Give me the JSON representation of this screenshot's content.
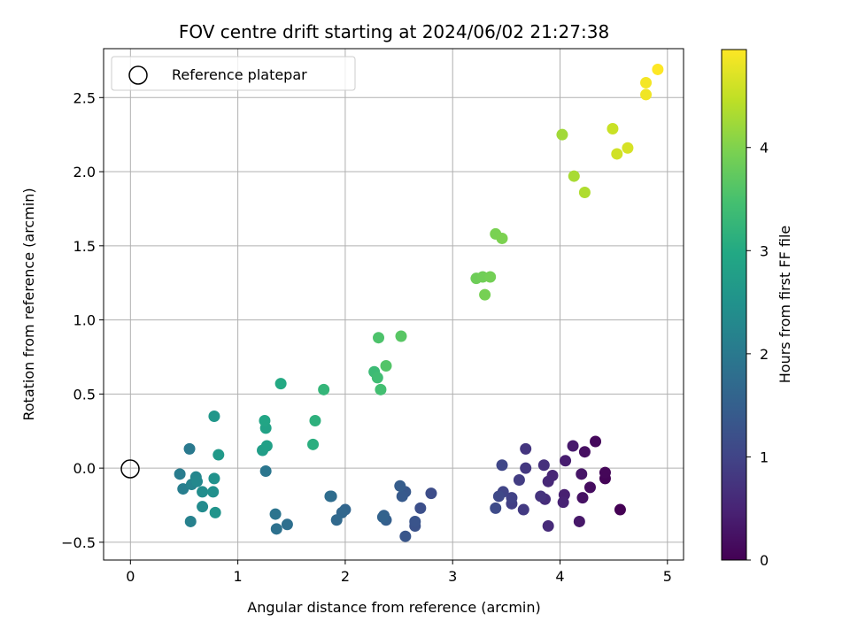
{
  "chart_data": {
    "type": "scatter",
    "title": "FOV centre drift starting at 2024/06/02 21:27:38",
    "xlabel": "Angular distance from reference (arcmin)",
    "ylabel": "Rotation from reference (arcmin)",
    "xlim": [
      -0.25,
      5.15
    ],
    "ylim": [
      -0.62,
      2.83
    ],
    "xticks": [
      0,
      1,
      2,
      3,
      4,
      5
    ],
    "xtick_labels": [
      "0",
      "1",
      "2",
      "3",
      "4",
      "5"
    ],
    "yticks": [
      -0.5,
      0.0,
      0.5,
      1.0,
      1.5,
      2.0,
      2.5
    ],
    "ytick_labels": [
      "−0.5",
      "0.0",
      "0.5",
      "1.0",
      "1.5",
      "2.0",
      "2.5"
    ],
    "grid": true,
    "legend": {
      "placement": "upper-left",
      "entries": [
        "Reference platepar"
      ]
    },
    "colorbar": {
      "label": "Hours from first FF file",
      "colormap": "viridis",
      "range": [
        0,
        4.95
      ],
      "ticks": [
        0,
        1,
        2,
        3,
        4
      ],
      "tick_labels": [
        "0",
        "1",
        "2",
        "3",
        "4"
      ]
    },
    "reference_point": {
      "x": 0,
      "y": 0,
      "marker": "open-circle",
      "label": "Reference platepar"
    },
    "points": [
      {
        "x": 4.56,
        "y": -0.28,
        "c": 0.0
      },
      {
        "x": 4.42,
        "y": -0.07,
        "c": 0.04
      },
      {
        "x": 4.42,
        "y": -0.03,
        "c": 0.08
      },
      {
        "x": 4.33,
        "y": 0.18,
        "c": 0.12
      },
      {
        "x": 4.28,
        "y": -0.13,
        "c": 0.16
      },
      {
        "x": 4.23,
        "y": 0.11,
        "c": 0.2
      },
      {
        "x": 4.21,
        "y": -0.2,
        "c": 0.24
      },
      {
        "x": 4.2,
        "y": -0.04,
        "c": 0.28
      },
      {
        "x": 4.18,
        "y": -0.36,
        "c": 0.32
      },
      {
        "x": 4.12,
        "y": 0.15,
        "c": 0.36
      },
      {
        "x": 4.05,
        "y": 0.05,
        "c": 0.4
      },
      {
        "x": 4.04,
        "y": -0.18,
        "c": 0.44
      },
      {
        "x": 4.03,
        "y": -0.23,
        "c": 0.48
      },
      {
        "x": 3.93,
        "y": -0.05,
        "c": 0.52
      },
      {
        "x": 3.89,
        "y": -0.09,
        "c": 0.56
      },
      {
        "x": 3.89,
        "y": -0.39,
        "c": 0.6
      },
      {
        "x": 3.86,
        "y": -0.21,
        "c": 0.64
      },
      {
        "x": 3.85,
        "y": 0.02,
        "c": 0.68
      },
      {
        "x": 3.82,
        "y": -0.19,
        "c": 0.72
      },
      {
        "x": 3.68,
        "y": 0.13,
        "c": 0.76
      },
      {
        "x": 3.68,
        "y": 0.0,
        "c": 0.8
      },
      {
        "x": 3.66,
        "y": -0.28,
        "c": 0.84
      },
      {
        "x": 3.62,
        "y": -0.08,
        "c": 0.88
      },
      {
        "x": 3.55,
        "y": -0.24,
        "c": 0.92
      },
      {
        "x": 3.55,
        "y": -0.2,
        "c": 0.96
      },
      {
        "x": 3.47,
        "y": -0.16,
        "c": 1.0
      },
      {
        "x": 3.46,
        "y": 0.02,
        "c": 1.04
      },
      {
        "x": 3.43,
        "y": -0.19,
        "c": 1.08
      },
      {
        "x": 3.4,
        "y": -0.27,
        "c": 1.12
      },
      {
        "x": 2.8,
        "y": -0.17,
        "c": 1.16
      },
      {
        "x": 2.7,
        "y": -0.27,
        "c": 1.2
      },
      {
        "x": 2.65,
        "y": -0.39,
        "c": 1.24
      },
      {
        "x": 2.65,
        "y": -0.36,
        "c": 1.28
      },
      {
        "x": 2.56,
        "y": -0.46,
        "c": 1.32
      },
      {
        "x": 2.56,
        "y": -0.16,
        "c": 1.36
      },
      {
        "x": 2.53,
        "y": -0.19,
        "c": 1.4
      },
      {
        "x": 2.51,
        "y": -0.12,
        "c": 1.44
      },
      {
        "x": 2.38,
        "y": -0.35,
        "c": 1.48
      },
      {
        "x": 2.36,
        "y": -0.32,
        "c": 1.52
      },
      {
        "x": 2.35,
        "y": -0.33,
        "c": 1.56
      },
      {
        "x": 2.0,
        "y": -0.28,
        "c": 1.6
      },
      {
        "x": 1.97,
        "y": -0.3,
        "c": 1.64
      },
      {
        "x": 1.92,
        "y": -0.35,
        "c": 1.68
      },
      {
        "x": 1.87,
        "y": -0.19,
        "c": 1.72
      },
      {
        "x": 1.86,
        "y": -0.19,
        "c": 1.76
      },
      {
        "x": 1.46,
        "y": -0.38,
        "c": 1.8
      },
      {
        "x": 1.36,
        "y": -0.41,
        "c": 1.85
      },
      {
        "x": 1.35,
        "y": -0.31,
        "c": 1.9
      },
      {
        "x": 1.26,
        "y": -0.02,
        "c": 1.95
      },
      {
        "x": 0.55,
        "y": 0.13,
        "c": 2.0
      },
      {
        "x": 0.46,
        "y": -0.04,
        "c": 2.05
      },
      {
        "x": 0.49,
        "y": -0.14,
        "c": 2.1
      },
      {
        "x": 0.56,
        "y": -0.36,
        "c": 2.15
      },
      {
        "x": 0.57,
        "y": -0.11,
        "c": 2.2
      },
      {
        "x": 0.61,
        "y": -0.06,
        "c": 2.25
      },
      {
        "x": 0.62,
        "y": -0.09,
        "c": 2.3
      },
      {
        "x": 0.67,
        "y": -0.26,
        "c": 2.35
      },
      {
        "x": 0.67,
        "y": -0.16,
        "c": 2.4
      },
      {
        "x": 0.77,
        "y": -0.16,
        "c": 2.45
      },
      {
        "x": 0.78,
        "y": -0.07,
        "c": 2.5
      },
      {
        "x": 0.79,
        "y": -0.3,
        "c": 2.55
      },
      {
        "x": 0.78,
        "y": 0.35,
        "c": 2.6
      },
      {
        "x": 0.82,
        "y": 0.09,
        "c": 2.65
      },
      {
        "x": 1.23,
        "y": 0.12,
        "c": 2.75
      },
      {
        "x": 1.27,
        "y": 0.15,
        "c": 2.8
      },
      {
        "x": 1.26,
        "y": 0.27,
        "c": 2.85
      },
      {
        "x": 1.25,
        "y": 0.32,
        "c": 2.9
      },
      {
        "x": 1.4,
        "y": 0.57,
        "c": 3.0
      },
      {
        "x": 1.7,
        "y": 0.16,
        "c": 3.1
      },
      {
        "x": 1.72,
        "y": 0.32,
        "c": 3.15
      },
      {
        "x": 1.8,
        "y": 0.53,
        "c": 3.25
      },
      {
        "x": 2.27,
        "y": 0.65,
        "c": 3.35
      },
      {
        "x": 2.3,
        "y": 0.61,
        "c": 3.4
      },
      {
        "x": 2.33,
        "y": 0.53,
        "c": 3.45
      },
      {
        "x": 2.31,
        "y": 0.88,
        "c": 3.55
      },
      {
        "x": 2.38,
        "y": 0.69,
        "c": 3.6
      },
      {
        "x": 2.52,
        "y": 0.89,
        "c": 3.65
      },
      {
        "x": 3.22,
        "y": 1.28,
        "c": 3.85
      },
      {
        "x": 3.28,
        "y": 1.29,
        "c": 3.87
      },
      {
        "x": 3.35,
        "y": 1.29,
        "c": 3.9
      },
      {
        "x": 3.3,
        "y": 1.17,
        "c": 3.92
      },
      {
        "x": 3.4,
        "y": 1.58,
        "c": 3.95
      },
      {
        "x": 3.46,
        "y": 1.55,
        "c": 3.97
      },
      {
        "x": 4.02,
        "y": 2.25,
        "c": 4.25
      },
      {
        "x": 4.13,
        "y": 1.97,
        "c": 4.3
      },
      {
        "x": 4.23,
        "y": 1.86,
        "c": 4.35
      },
      {
        "x": 4.49,
        "y": 2.29,
        "c": 4.55
      },
      {
        "x": 4.53,
        "y": 2.12,
        "c": 4.6
      },
      {
        "x": 4.63,
        "y": 2.16,
        "c": 4.65
      },
      {
        "x": 4.8,
        "y": 2.52,
        "c": 4.85
      },
      {
        "x": 4.8,
        "y": 2.6,
        "c": 4.88
      },
      {
        "x": 4.91,
        "y": 2.69,
        "c": 4.95
      }
    ]
  }
}
